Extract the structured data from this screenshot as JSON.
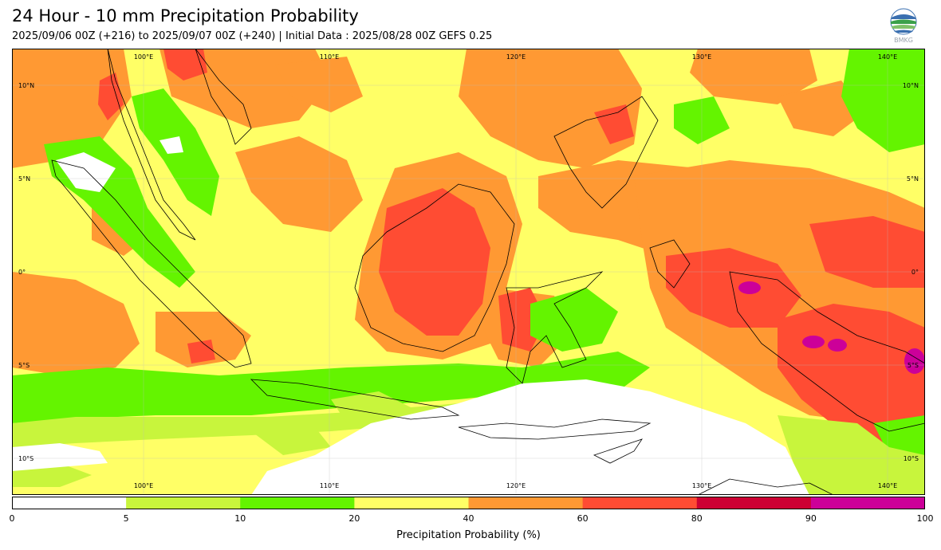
{
  "header": {
    "title": "24 Hour - 10 mm Precipitation Probability",
    "subtitle": "2025/09/06 00Z (+216) to 2025/09/07 00Z (+240) | Initial Data : 2025/08/28 00Z GEFS 0.25"
  },
  "logo": {
    "icon": "bmkg-logo-icon",
    "text": "BMKG"
  },
  "map": {
    "lon_labels_top": [
      "100°E",
      "110°E",
      "120°E",
      "130°E",
      "140°E"
    ],
    "lon_labels_bottom": [
      "100°E",
      "110°E",
      "120°E",
      "130°E",
      "140°E"
    ],
    "lat_labels_left": [
      "10°N",
      "5°N",
      "0°",
      "5°S",
      "10°S"
    ],
    "lat_labels_right": [
      "10°N",
      "5°N",
      "0°",
      "5°S",
      "10°S"
    ]
  },
  "colorbar": {
    "label": "Precipitation Probability (%)",
    "ticks": [
      "0",
      "5",
      "10",
      "20",
      "40",
      "60",
      "80",
      "90",
      "100"
    ],
    "colors": [
      "#ffffff",
      "#c8f53c",
      "#64f400",
      "#ffff66",
      "#ff9933",
      "#ff4c33",
      "#cc0033",
      "#cc0099"
    ]
  }
}
